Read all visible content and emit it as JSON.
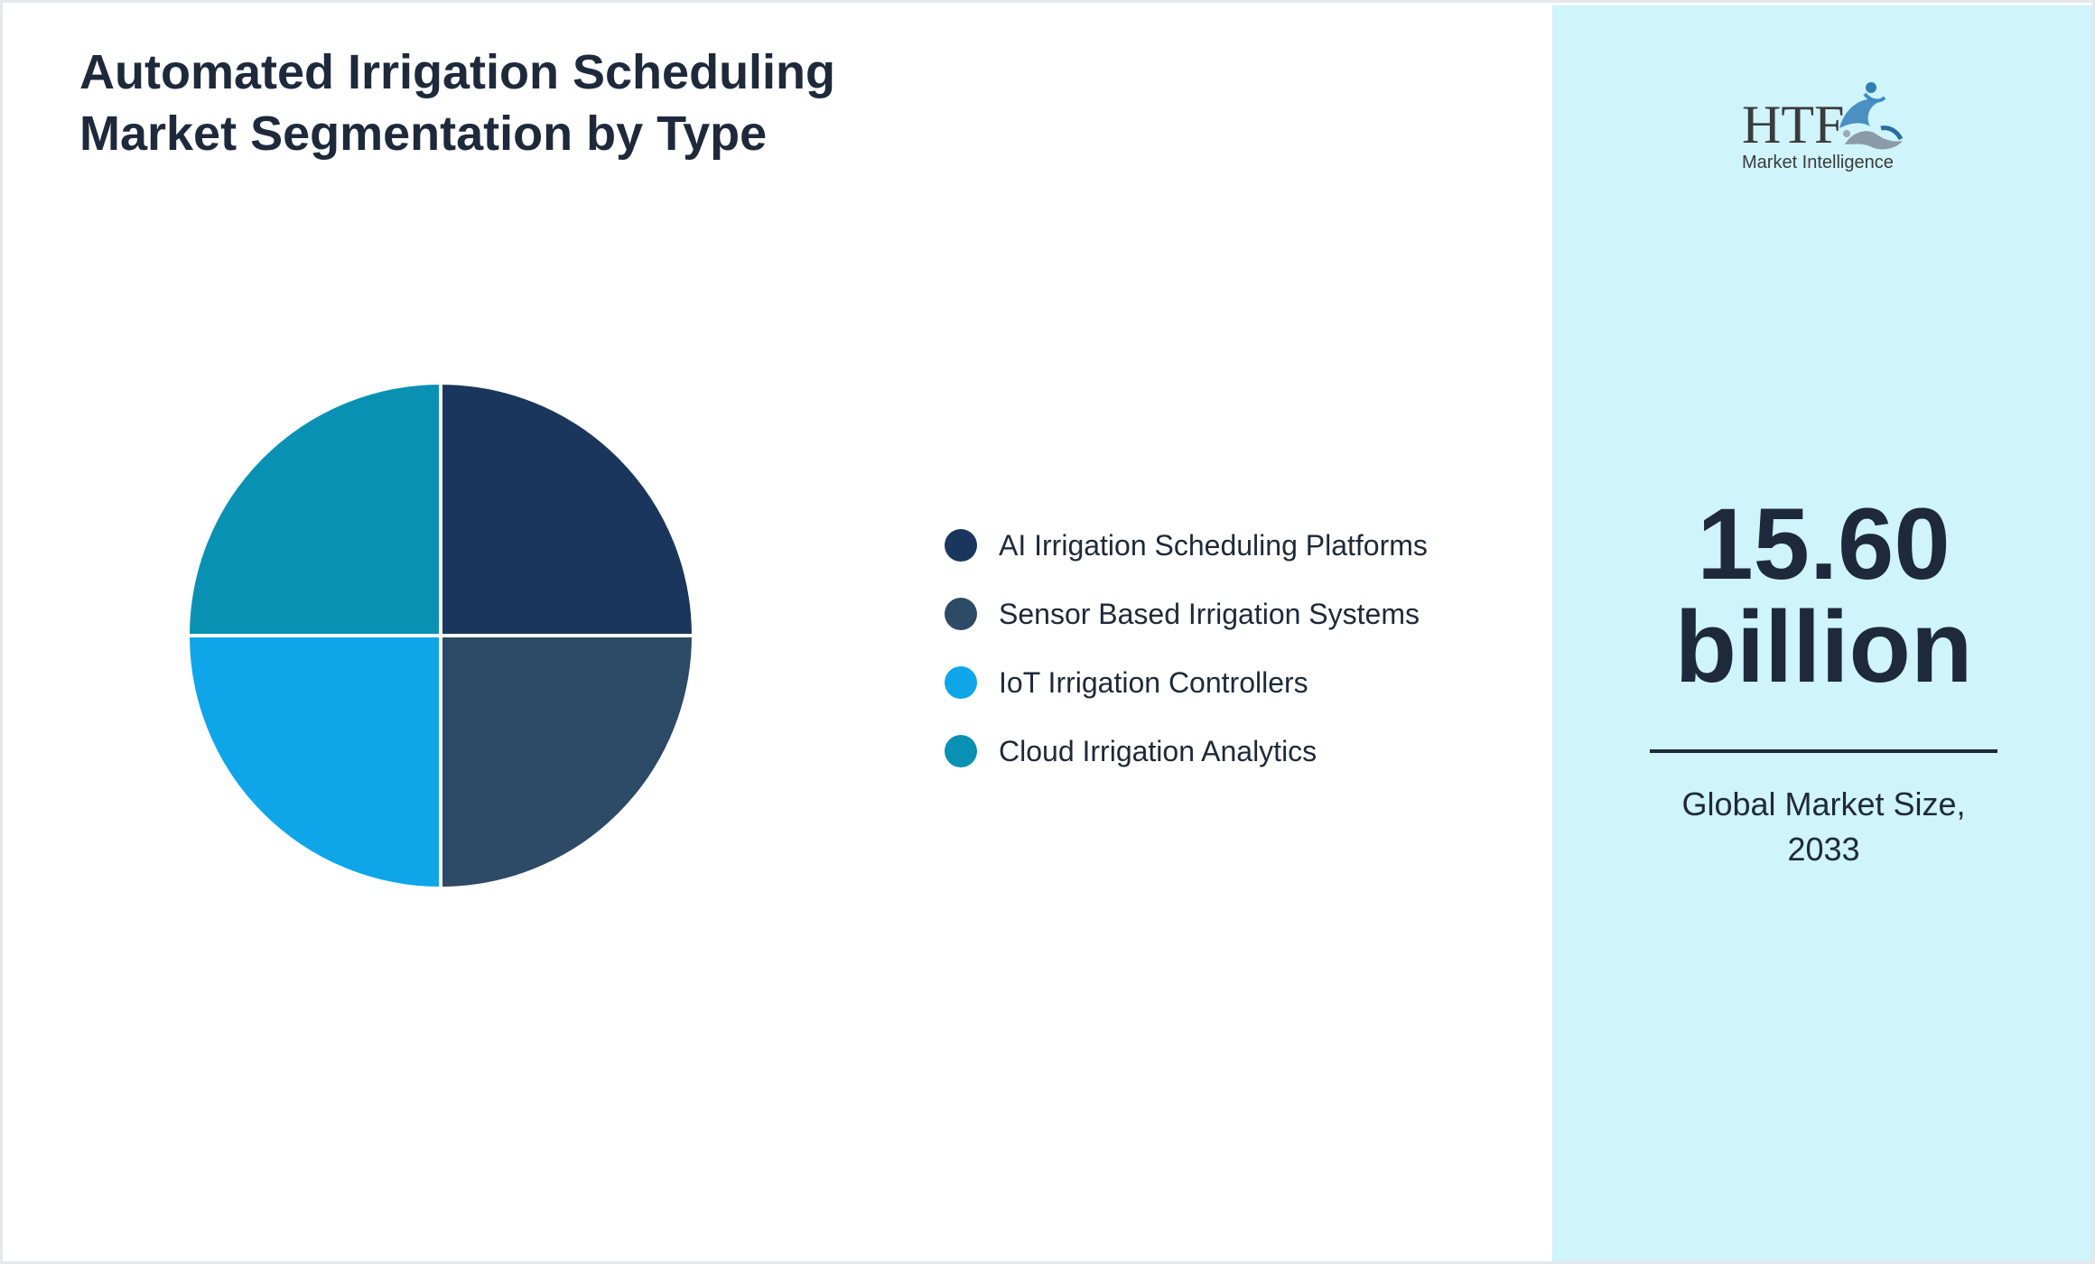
{
  "title_line1": "Automated Irrigation Scheduling",
  "title_line2": "Market Segmentation by Type",
  "chart_data": {
    "type": "pie",
    "title": "Automated Irrigation Scheduling Market Segmentation by Type",
    "categories": [
      "AI Irrigation Scheduling Platforms",
      "Sensor Based Irrigation Systems",
      "IoT Irrigation Controllers",
      "Cloud Irrigation Analytics"
    ],
    "values": [
      25,
      25,
      25,
      25
    ],
    "colors": [
      "#1b365d",
      "#2d4a66",
      "#0ea5e9",
      "#0891b2"
    ],
    "legend": "right"
  },
  "side_panel": {
    "logo": {
      "mark": "HTF",
      "subtitle": "Market Intelligence",
      "icon": "htf-logo-icon"
    },
    "kpi_value": "15.60",
    "kpi_unit": "billion",
    "kpi_caption_line1": "Global Market Size,",
    "kpi_caption_line2": "2033",
    "background": "#cff4fc",
    "text_color": "#1e293b"
  }
}
